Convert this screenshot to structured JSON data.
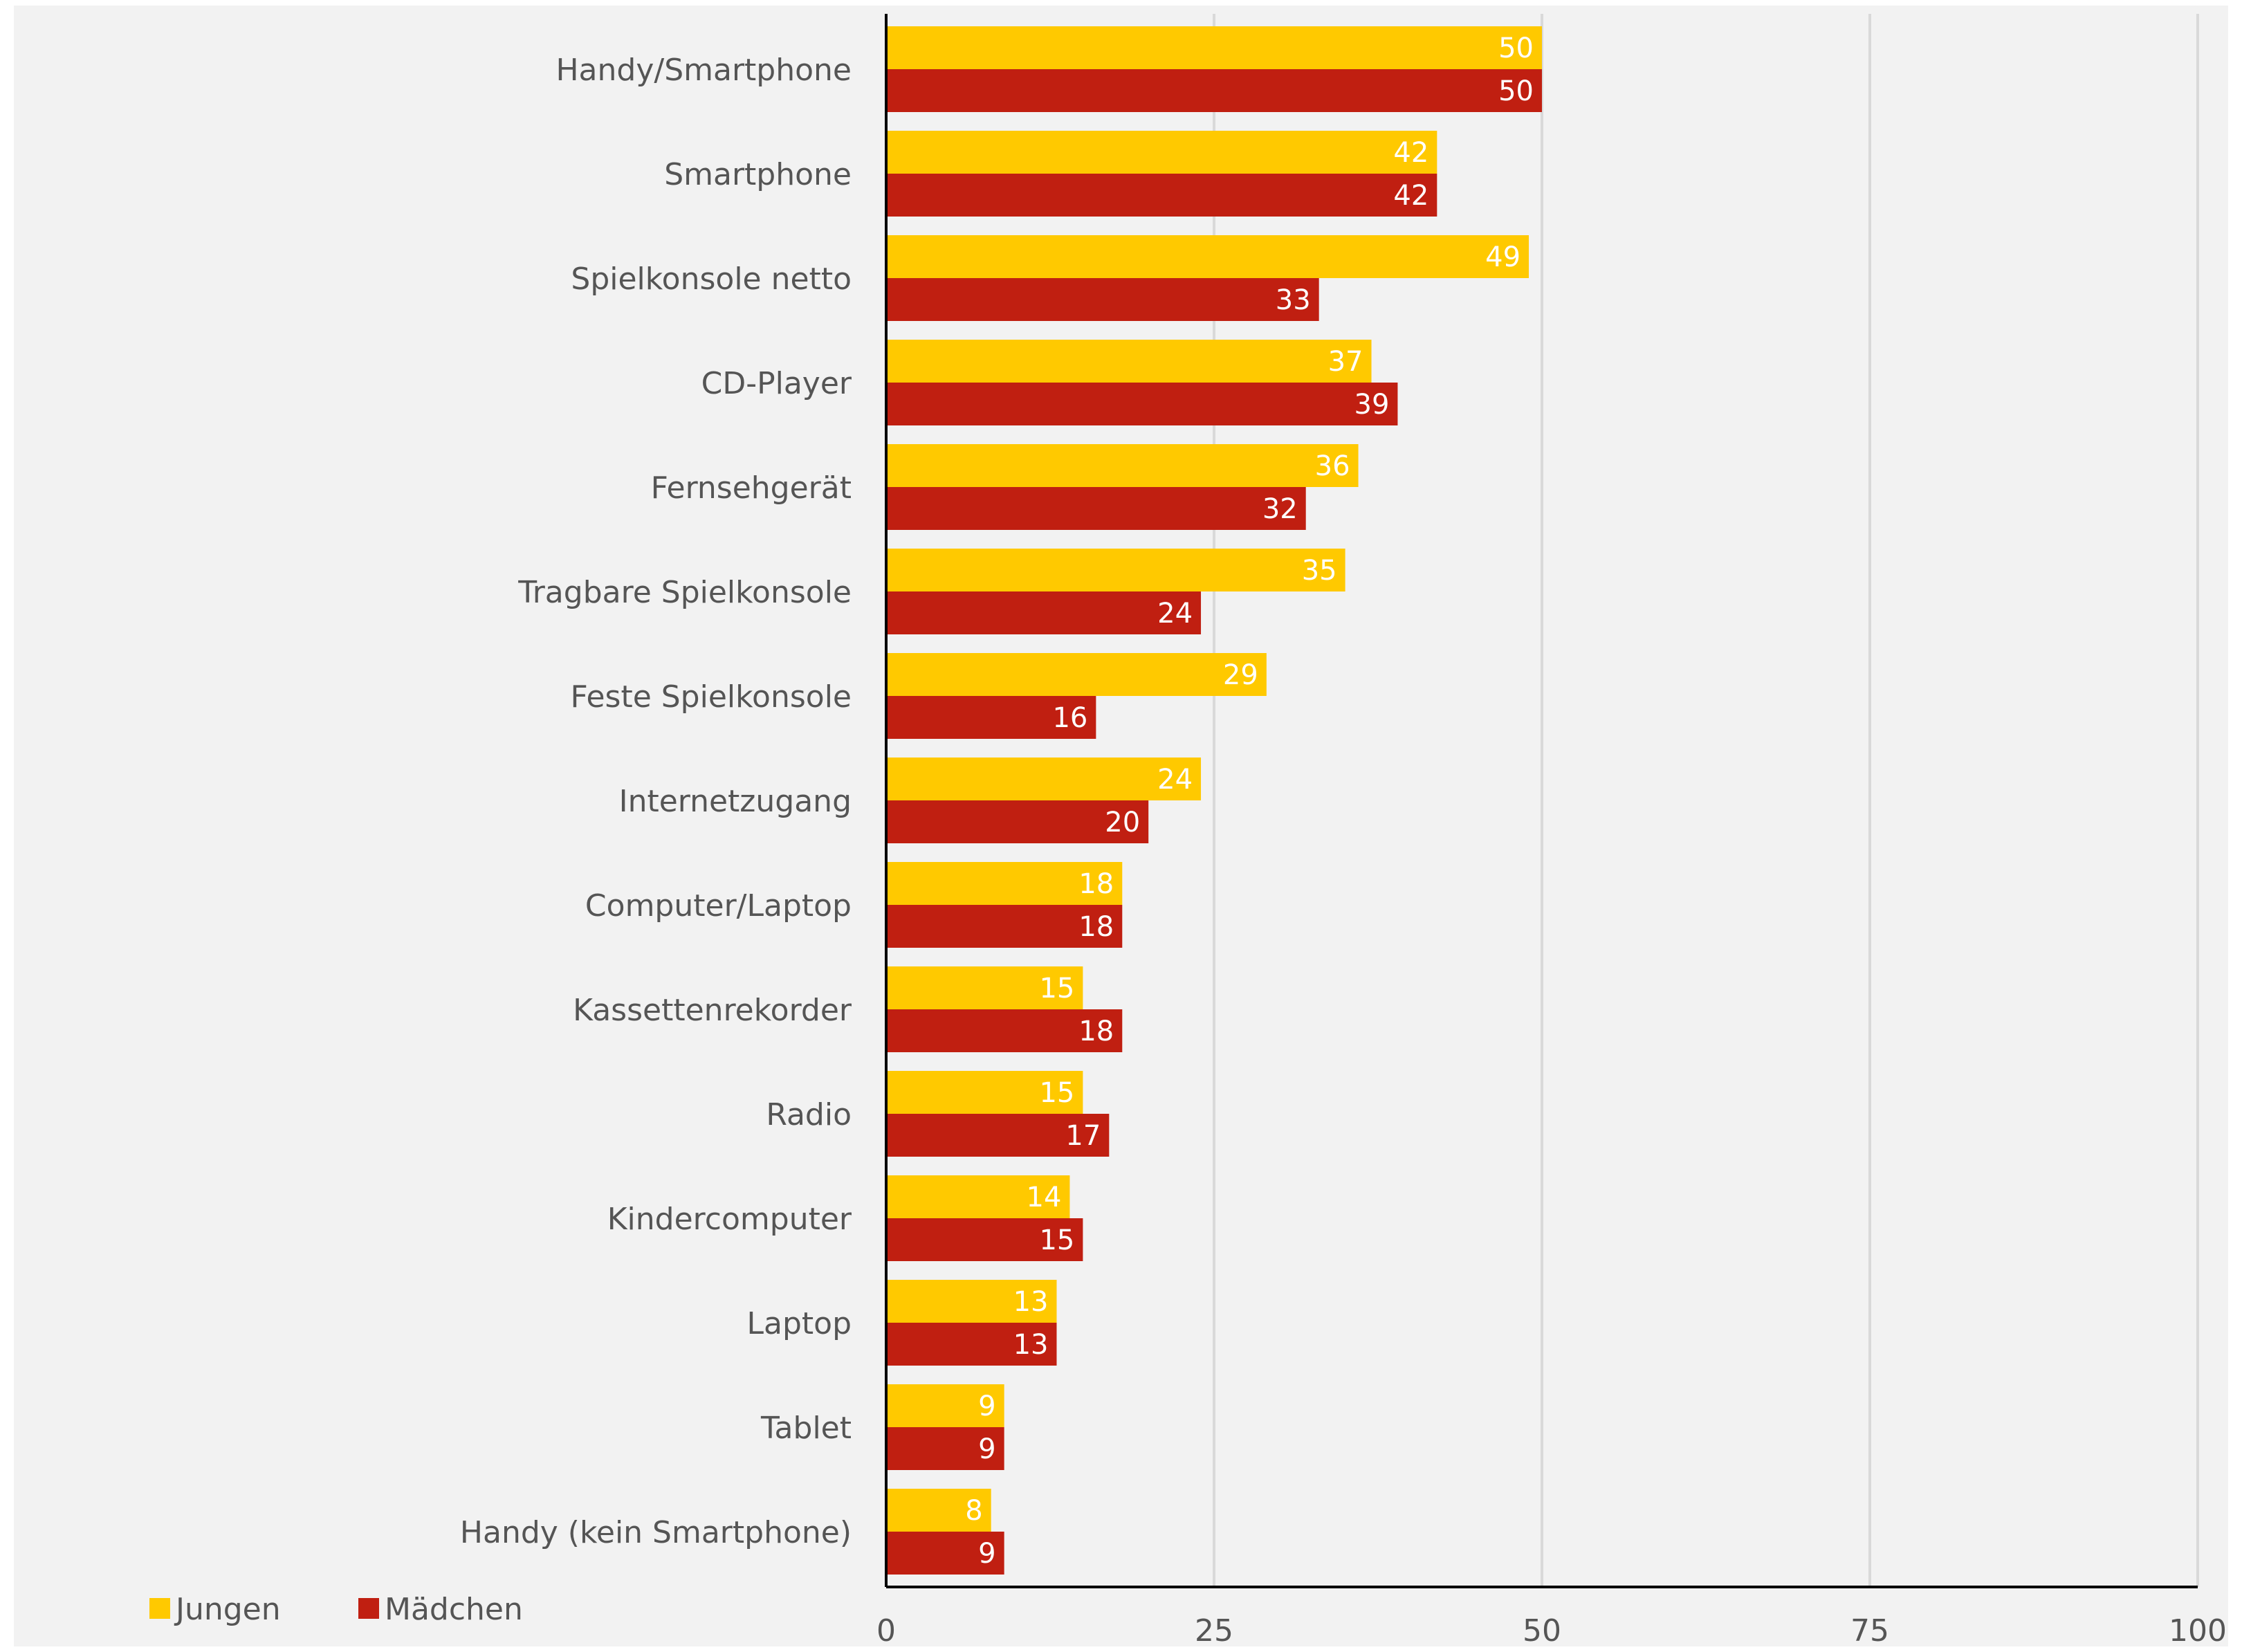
{
  "chart_data": {
    "type": "bar",
    "orientation": "horizontal",
    "categories": [
      "Handy/Smartphone",
      "Smartphone",
      "Spielkonsole netto",
      "CD-Player",
      "Fernsehgerät",
      "Tragbare Spielkonsole",
      "Feste Spielkonsole",
      "Internetzugang",
      "Computer/Laptop",
      "Kassettenrekorder",
      "Radio",
      "Kindercomputer",
      "Laptop",
      "Tablet",
      "Handy (kein Smartphone)"
    ],
    "series": [
      {
        "name": "Jungen",
        "color": "#FFC900",
        "values": [
          50,
          42,
          49,
          37,
          36,
          35,
          29,
          24,
          18,
          15,
          15,
          14,
          13,
          9,
          8
        ]
      },
      {
        "name": "Mädchen",
        "color": "#C01F11",
        "values": [
          50,
          42,
          33,
          39,
          32,
          24,
          16,
          20,
          18,
          18,
          17,
          15,
          13,
          9,
          9
        ]
      }
    ],
    "xlim": [
      0,
      100
    ],
    "xticks": [
      "0",
      "25",
      "50",
      "75",
      "100"
    ],
    "grid": "vertical",
    "legend": "bottom-left",
    "data_labels": true,
    "background": "#F2F2F2",
    "gridline_color": "#D9D9D9",
    "axis_color": "#000000",
    "title": "",
    "xlabel": "",
    "ylabel": ""
  }
}
